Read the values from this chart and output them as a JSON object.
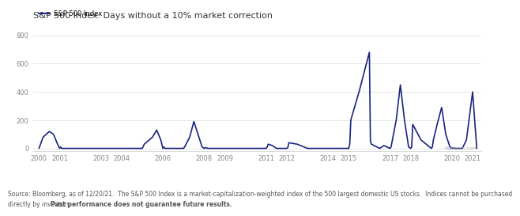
{
  "title": "S&P 500 Index: Days without a 10% market correction",
  "legend_label": "S&P 500 Index",
  "line_color": "#1a237e",
  "line_width": 1.2,
  "background_color": "#ffffff",
  "yticks": [
    0,
    200,
    400,
    600,
    800
  ],
  "ylim": [
    -20,
    860
  ],
  "xtick_labels": [
    "2000",
    "2001",
    "2003",
    "2004",
    "2006",
    "2008",
    "2009",
    "2011",
    "2012",
    "2014",
    "2015",
    "2017",
    "2018",
    "2020",
    "2021"
  ],
  "source_text": "Source: Bloomberg, as of 12/20/21.  The S&P 500 Index is a market-capitalization-weighted index of the 500 largest domestic US stocks.  Indices cannot be purchased\ndirectly by investors. Past performance does not guarantee future results.",
  "bold_source_text": "Past performance does not guarantee future results.",
  "watermark": "highlands.com",
  "x": [
    2000,
    2000.2,
    2000.5,
    2000.7,
    2000.9,
    2001.0,
    2001.05,
    2001.1,
    2001.5,
    2002.0,
    2002.5,
    2003.0,
    2003.5,
    2004.0,
    2004.5,
    2005.0,
    2005.1,
    2005.5,
    2005.7,
    2005.9,
    2006.0,
    2006.05,
    2006.1,
    2006.5,
    2006.7,
    2006.9,
    2007.0,
    2007.05,
    2007.3,
    2007.5,
    2007.7,
    2007.9,
    2008.0,
    2008.05,
    2008.2,
    2008.5,
    2009.0,
    2009.5,
    2010.0,
    2010.5,
    2011.0,
    2011.05,
    2011.1,
    2011.3,
    2011.5,
    2012.0,
    2012.05,
    2012.1,
    2012.5,
    2013.0,
    2013.5,
    2014.0,
    2014.5,
    2015.0,
    2015.05,
    2015.1,
    2015.5,
    2016.0,
    2016.05,
    2016.1,
    2016.5,
    2016.7,
    2017.0,
    2017.05,
    2017.3,
    2017.5,
    2017.7,
    2017.9,
    2018.0,
    2018.05,
    2018.1,
    2018.5,
    2019.0,
    2019.05,
    2019.1,
    2019.3,
    2019.5,
    2019.7,
    2019.9,
    2020.0,
    2020.05,
    2020.1,
    2020.5,
    2020.7,
    2021.0,
    2021.2
  ],
  "y": [
    0,
    80,
    120,
    100,
    30,
    0,
    10,
    0,
    0,
    0,
    0,
    0,
    0,
    0,
    0,
    0,
    30,
    80,
    130,
    60,
    0,
    10,
    0,
    0,
    0,
    0,
    0,
    10,
    80,
    190,
    100,
    10,
    0,
    5,
    0,
    0,
    0,
    0,
    0,
    0,
    0,
    10,
    30,
    20,
    0,
    0,
    5,
    40,
    30,
    0,
    0,
    0,
    0,
    0,
    30,
    200,
    400,
    680,
    50,
    30,
    0,
    20,
    0,
    10,
    200,
    450,
    200,
    10,
    0,
    10,
    170,
    60,
    0,
    10,
    60,
    180,
    290,
    100,
    10,
    0,
    5,
    0,
    0,
    60,
    400,
    0
  ]
}
